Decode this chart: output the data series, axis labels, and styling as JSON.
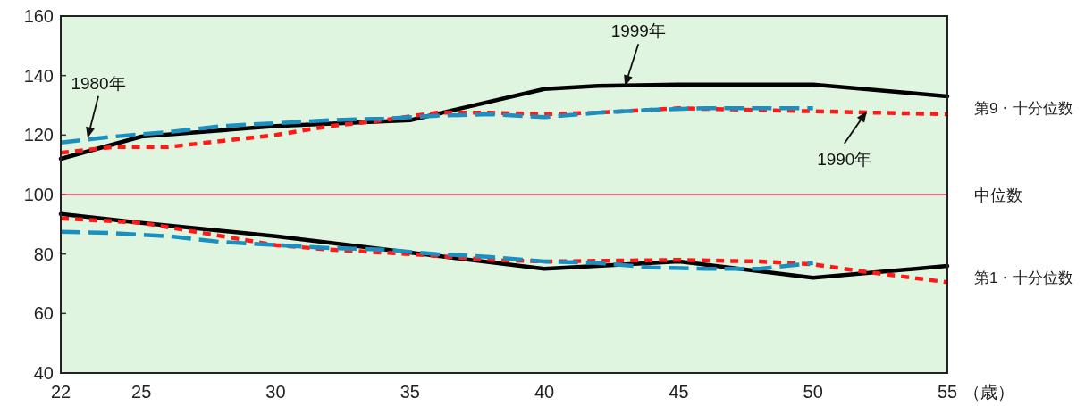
{
  "chart_data": {
    "type": "line",
    "xlabel": "（歳）",
    "xlim": [
      22,
      55
    ],
    "xticks": [
      22,
      25,
      30,
      35,
      40,
      45,
      50,
      55
    ],
    "ylim": [
      40,
      160
    ],
    "yticks": [
      40,
      60,
      80,
      100,
      120,
      140,
      160
    ],
    "grid": false,
    "marker": "none",
    "series": [
      {
        "color": "#000000",
        "line_style": "solid",
        "x": [
          22,
          25,
          30,
          35,
          40,
          42,
          45,
          50,
          55
        ],
        "values": [
          112,
          119.5,
          123,
          125,
          135.5,
          136.5,
          137,
          137,
          133
        ]
      },
      {
        "color": "#ff1a1a",
        "line_style": "dotted",
        "x": [
          22,
          24,
          26,
          28,
          30,
          32,
          34,
          36,
          38,
          40,
          42,
          45,
          50,
          55
        ],
        "values": [
          114,
          116,
          116,
          118,
          120,
          123,
          125,
          127.5,
          127.5,
          127,
          127.5,
          129,
          128,
          127
        ]
      },
      {
        "color": "#1a8fc0",
        "line_style": "dashed",
        "x": [
          22,
          24,
          26,
          28,
          30,
          32,
          34,
          36,
          38,
          40,
          42,
          44,
          46,
          48,
          50
        ],
        "values": [
          117.5,
          119.5,
          121,
          123,
          124,
          125,
          125.5,
          126.5,
          127,
          126,
          127.5,
          128.5,
          129,
          129,
          129
        ]
      },
      {
        "color": "#000000",
        "line_style": "solid",
        "x": [
          22,
          25,
          30,
          35,
          40,
          45,
          50,
          55
        ],
        "values": [
          93.5,
          90.5,
          86,
          80.5,
          75,
          77.5,
          72,
          76
        ]
      },
      {
        "color": "#ff1a1a",
        "line_style": "dotted",
        "x": [
          22,
          25,
          28,
          30,
          32,
          35,
          38,
          40,
          45,
          48,
          50,
          52,
          55
        ],
        "values": [
          92,
          90.5,
          86,
          83,
          81.5,
          80,
          78,
          77.5,
          78,
          77.5,
          76.5,
          74,
          70.5
        ]
      },
      {
        "color": "#1a8fc0",
        "line_style": "dashed",
        "x": [
          22,
          24,
          26,
          28,
          30,
          32,
          34,
          36,
          38,
          40,
          42,
          44,
          46,
          48,
          50
        ],
        "values": [
          87.5,
          87,
          86,
          84,
          83,
          82,
          81.5,
          80,
          79,
          77.5,
          77,
          75.5,
          75,
          75,
          77
        ]
      }
    ],
    "ref_lines": [
      {
        "axis": "y",
        "value": 100,
        "label": "中位数",
        "color": "#ff3377"
      }
    ],
    "annotations": [
      {
        "text": "1980年",
        "x": 23,
        "y": 119
      },
      {
        "text": "1999年",
        "x": 43,
        "y": 136.5
      },
      {
        "text": "1990年",
        "x": 52,
        "y": 128
      },
      {
        "text": "第9・十分位数",
        "x": 55,
        "y": 129
      },
      {
        "text": "第1・十分位数",
        "x": 55,
        "y": 72
      }
    ]
  }
}
